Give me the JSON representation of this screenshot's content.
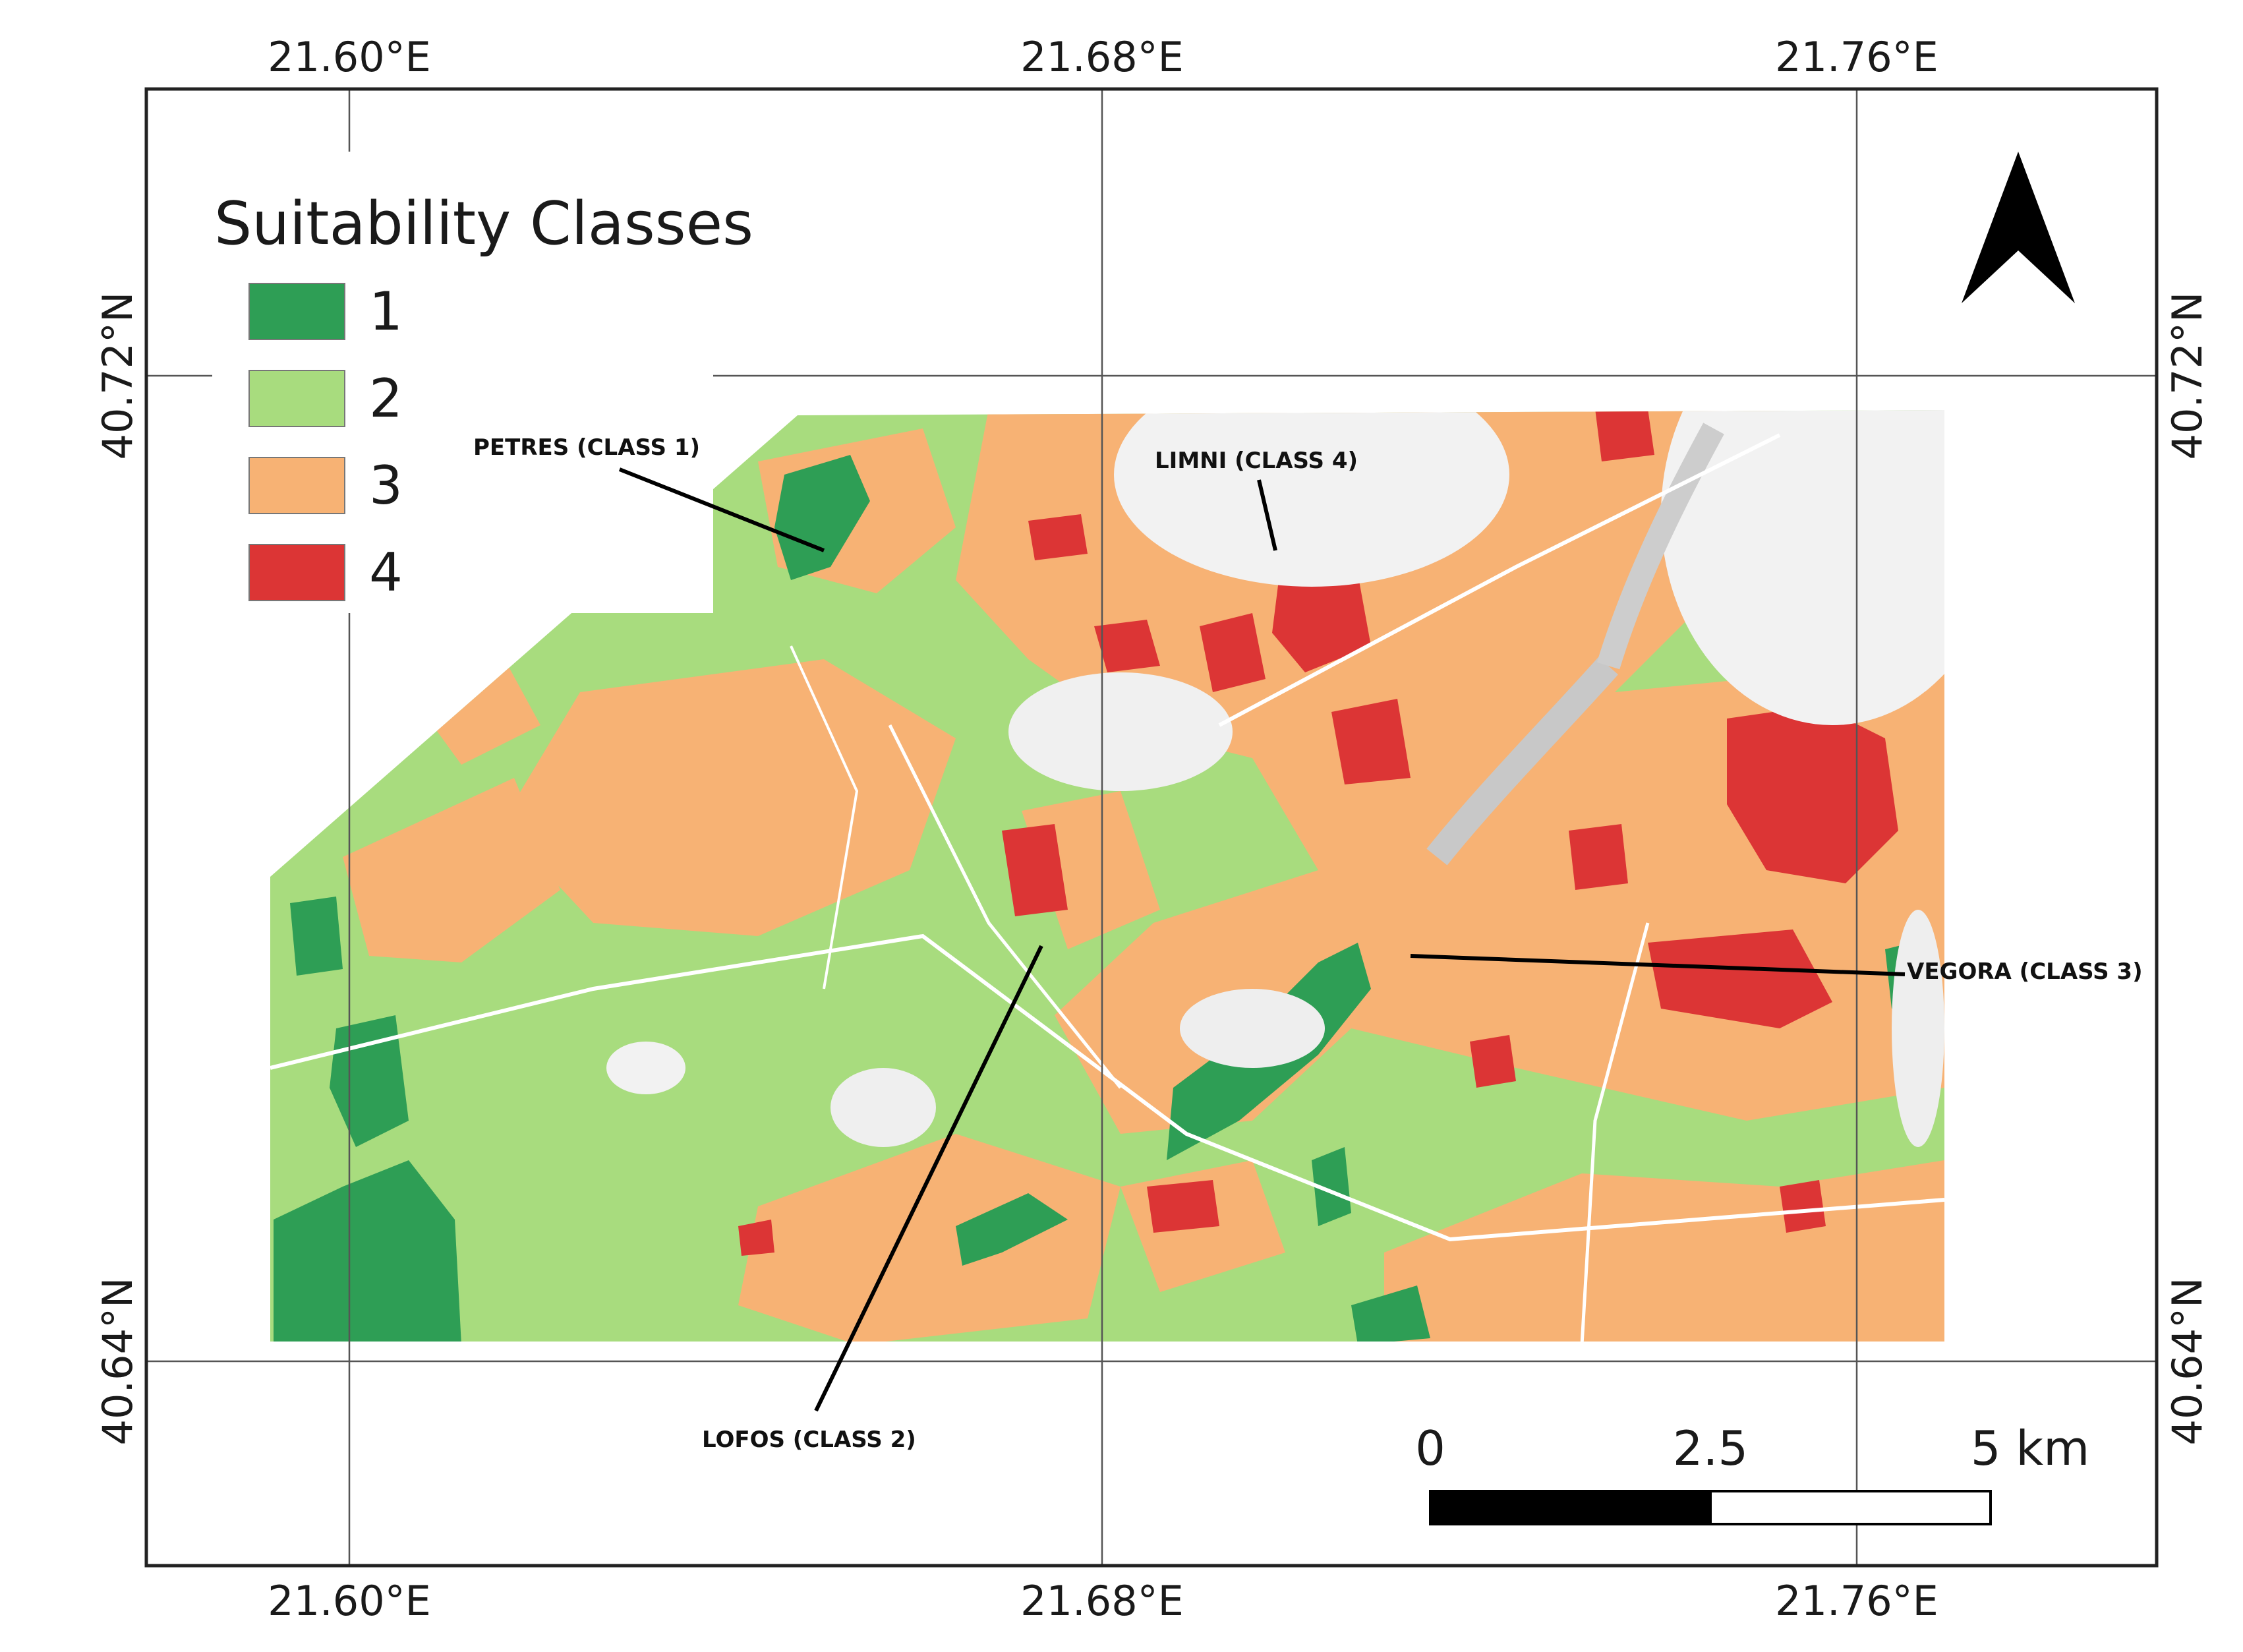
{
  "legend": {
    "title": "Suitability Classes",
    "classes": [
      {
        "label": "1",
        "color": "#2e9e55"
      },
      {
        "label": "2",
        "color": "#a8dc7e"
      },
      {
        "label": "3",
        "color": "#f7b274"
      },
      {
        "label": "4",
        "color": "#dc3535"
      }
    ]
  },
  "coordinates": {
    "longitudes": [
      "21.60°E",
      "21.68°E",
      "21.76°E"
    ],
    "latitudes": [
      "40.72°N",
      "40.64°N"
    ]
  },
  "places": [
    {
      "label": "PETRES (CLASS 1)"
    },
    {
      "label": "LIMNI (CLASS 4)"
    },
    {
      "label": "VEGORA (CLASS 3)"
    },
    {
      "label": "LOFOS (CLASS 2)"
    }
  ],
  "scale_bar": {
    "labels": [
      "0",
      "2.5",
      "5 km"
    ]
  },
  "north_arrow": {
    "icon": "north-arrow-icon"
  }
}
